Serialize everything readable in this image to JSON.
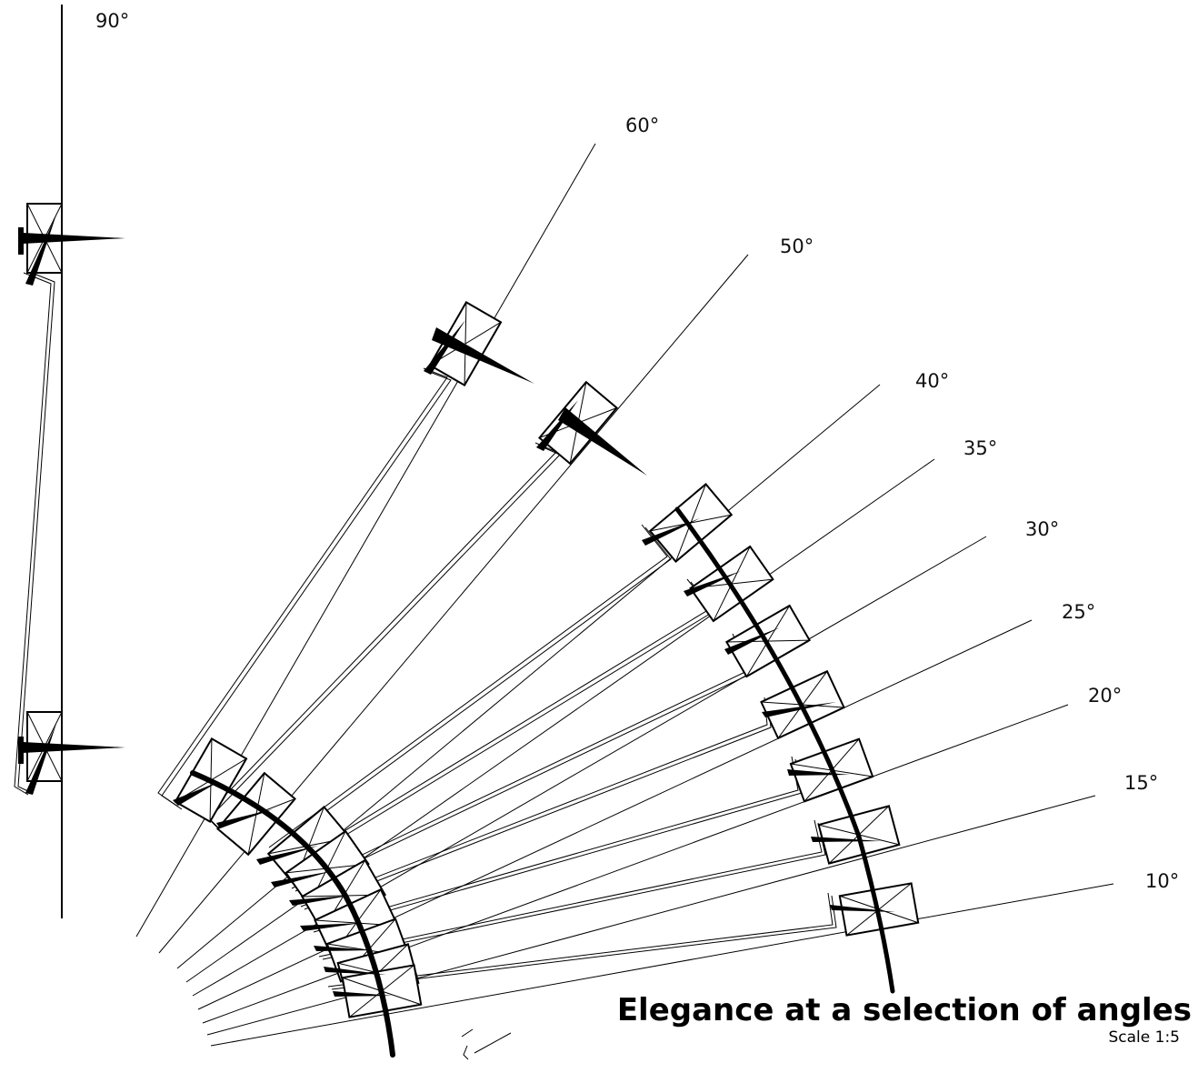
{
  "drawing": {
    "title": "Elegance at a selection of angles",
    "scale": "Scale 1:5",
    "angles": [
      {
        "label": "90°"
      },
      {
        "label": "60°"
      },
      {
        "label": "50°"
      },
      {
        "label": "40°"
      },
      {
        "label": "35°"
      },
      {
        "label": "30°"
      },
      {
        "label": "25°"
      },
      {
        "label": "20°"
      },
      {
        "label": "15°"
      },
      {
        "label": "10°"
      }
    ],
    "colors": {
      "ink": "#000000",
      "paper": "#ffffff"
    }
  }
}
